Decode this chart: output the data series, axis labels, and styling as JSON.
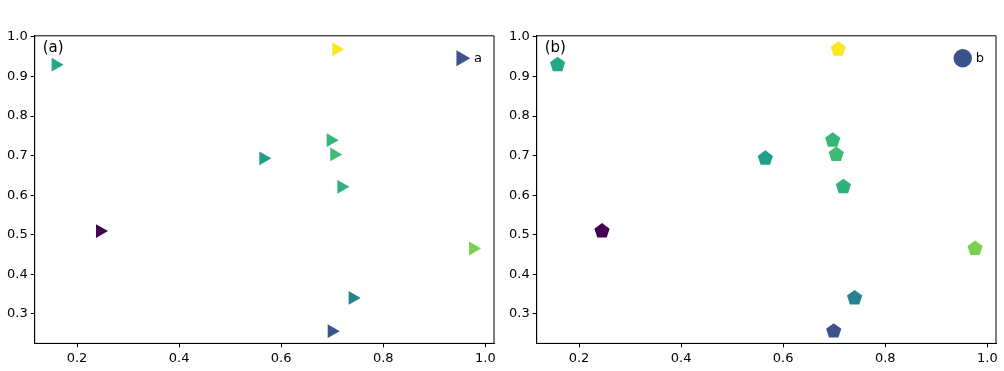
{
  "chart_data": [
    {
      "type": "scatter",
      "annotations": [
        "(a)"
      ],
      "marker": "triangle",
      "legend": "top right",
      "grid": false,
      "xlim": [
        0.117,
        1.017
      ],
      "ylim": [
        0.225,
        1.003
      ],
      "xticks": [
        0.2,
        0.4,
        0.6,
        0.8,
        {
          "value": 1,
          "label": "1.0"
        }
      ],
      "yticks": [
        0.3,
        0.4,
        0.5,
        0.6,
        0.7,
        0.8,
        0.9,
        {
          "value": 1,
          "label": "1.0"
        }
      ],
      "series": [
        {
          "name": "a",
          "color": "#3b528b",
          "x": [
            0.158,
            0.708,
            0.697,
            0.704,
            0.718,
            0.565,
            0.245,
            0.976,
            0.74,
            0.699
          ],
          "values": [
            0.93,
            0.969,
            0.739,
            0.703,
            0.621,
            0.693,
            0.509,
            0.465,
            0.34,
            0.256
          ],
          "colors": [
            "#22a884",
            "#fde725",
            "#35b779",
            "#3fbc73",
            "#2db27d",
            "#1f9e89",
            "#440154",
            "#7ad151",
            "#26828e",
            "#3b528b"
          ]
        }
      ]
    },
    {
      "type": "scatter",
      "annotations": [
        "(b)"
      ],
      "legend": "top right",
      "grid": false,
      "xlim": [
        0.117,
        1.017
      ],
      "ylim": [
        0.225,
        1.003
      ],
      "xticks": [
        0.2,
        0.4,
        0.6,
        0.8,
        {
          "value": 1,
          "label": "1.0"
        }
      ],
      "yticks": [
        0.3,
        0.4,
        0.5,
        0.6,
        0.7,
        0.8,
        0.9,
        {
          "value": 1,
          "label": "1.0"
        }
      ],
      "series": [
        {
          "name": "b",
          "color": "#3b528b",
          "x": [
            0.158,
            0.708,
            0.697,
            0.704,
            0.718,
            0.565,
            0.245,
            0.976,
            0.74,
            0.699
          ],
          "values": [
            0.93,
            0.969,
            0.739,
            0.703,
            0.621,
            0.693,
            0.509,
            0.465,
            0.34,
            0.256
          ],
          "colors": [
            "#22a884",
            "#fde725",
            "#35b779",
            "#3fbc73",
            "#2db27d",
            "#1f9e89",
            "#440154",
            "#7ad151",
            "#26828e",
            "#3b528b"
          ]
        }
      ]
    }
  ]
}
